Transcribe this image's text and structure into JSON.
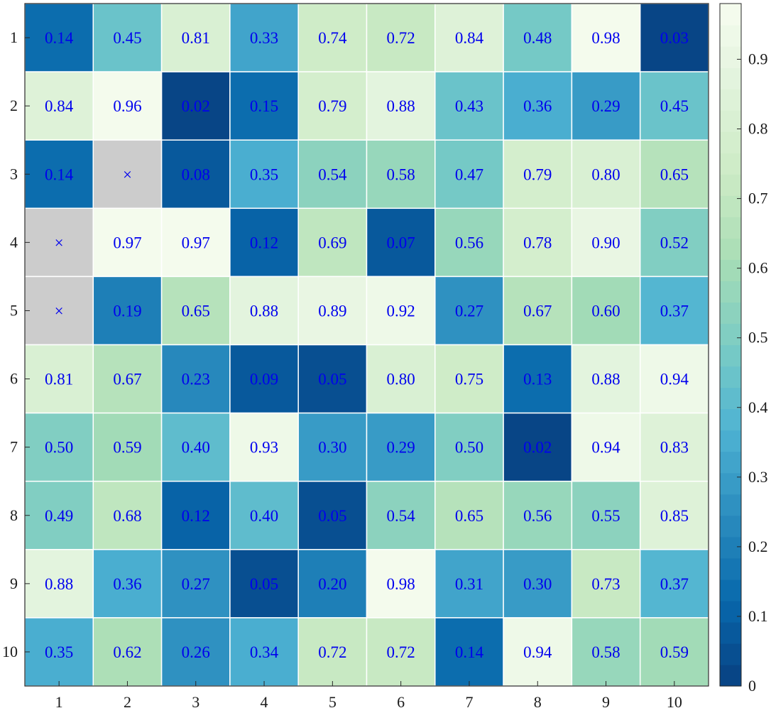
{
  "chart_data": {
    "type": "heatmap",
    "title": "",
    "xlabel": "",
    "ylabel": "",
    "x_categories": [
      "1",
      "2",
      "3",
      "4",
      "5",
      "6",
      "7",
      "8",
      "9",
      "10"
    ],
    "y_categories": [
      "1",
      "2",
      "3",
      "4",
      "5",
      "6",
      "7",
      "8",
      "9",
      "10"
    ],
    "values": [
      [
        0.14,
        0.45,
        0.81,
        0.33,
        0.74,
        0.72,
        0.84,
        0.48,
        0.98,
        0.03
      ],
      [
        0.84,
        0.96,
        0.02,
        0.15,
        0.79,
        0.88,
        0.43,
        0.36,
        0.29,
        0.45
      ],
      [
        0.14,
        null,
        0.08,
        0.35,
        0.54,
        0.58,
        0.47,
        0.79,
        0.8,
        0.65
      ],
      [
        null,
        0.97,
        0.97,
        0.12,
        0.69,
        0.07,
        0.56,
        0.78,
        0.9,
        0.52
      ],
      [
        null,
        0.19,
        0.65,
        0.88,
        0.89,
        0.92,
        0.27,
        0.67,
        0.6,
        0.37
      ],
      [
        0.81,
        0.67,
        0.23,
        0.09,
        0.05,
        0.8,
        0.75,
        0.13,
        0.88,
        0.94
      ],
      [
        0.5,
        0.59,
        0.4,
        0.93,
        0.3,
        0.29,
        0.5,
        0.02,
        0.94,
        0.83
      ],
      [
        0.49,
        0.68,
        0.12,
        0.4,
        0.05,
        0.54,
        0.65,
        0.56,
        0.55,
        0.85
      ],
      [
        0.88,
        0.36,
        0.27,
        0.05,
        0.2,
        0.98,
        0.31,
        0.3,
        0.73,
        0.37
      ],
      [
        0.35,
        0.62,
        0.26,
        0.34,
        0.72,
        0.72,
        0.14,
        0.94,
        0.58,
        0.59
      ]
    ],
    "missing_marker": "×",
    "missing_color": "#cccccc",
    "label_color": "#0000ee",
    "colorbar": {
      "range": [
        0,
        0.98
      ],
      "ticks": [
        0,
        0.1,
        0.2,
        0.3,
        0.4,
        0.5,
        0.6,
        0.7,
        0.8,
        0.9
      ],
      "tick_labels": [
        "0",
        "0.1",
        "0.2",
        "0.3",
        "0.4",
        "0.5",
        "0.6",
        "0.7",
        "0.8",
        "0.9"
      ],
      "levels": 32
    },
    "colormap": [
      "#084081",
      "#0868ac",
      "#2b8cbe",
      "#4eb3d3",
      "#7bccc4",
      "#a8ddb5",
      "#ccebc5",
      "#e0f3db",
      "#f7fcf0"
    ],
    "grid": "white cell borders",
    "legend": "colorbar-right"
  }
}
